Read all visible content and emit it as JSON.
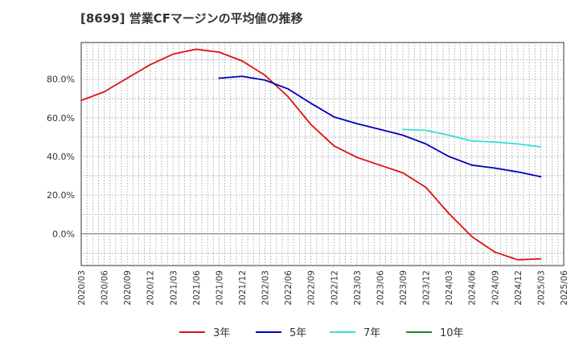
{
  "chart_data": {
    "type": "line",
    "title": "[8699]  営業CFマージンの平均値の推移",
    "xlabel": "",
    "ylabel": "",
    "x_ticks": [
      "2020/03",
      "2020/06",
      "2020/09",
      "2020/12",
      "2021/03",
      "2021/06",
      "2021/09",
      "2021/12",
      "2022/03",
      "2022/06",
      "2022/09",
      "2022/12",
      "2023/03",
      "2023/06",
      "2023/09",
      "2023/12",
      "2024/03",
      "2024/06",
      "2024/09",
      "2024/12",
      "2025/03",
      "2025/06"
    ],
    "y_ticks": [
      "0.0%",
      "20.0%",
      "40.0%",
      "60.0%",
      "80.0%"
    ],
    "y_tick_values": [
      0,
      20,
      40,
      60,
      80
    ],
    "ylim": [
      -16.5,
      99
    ],
    "grid": true,
    "legend_position": "bottom",
    "series": [
      {
        "name": "3年",
        "color": "#dd1111",
        "x": [
          "2020/03",
          "2020/06",
          "2020/09",
          "2020/12",
          "2021/03",
          "2021/06",
          "2021/09",
          "2021/12",
          "2022/03",
          "2022/06",
          "2022/09",
          "2022/12",
          "2023/03",
          "2023/06",
          "2023/09",
          "2023/12",
          "2024/03",
          "2024/06",
          "2024/09",
          "2024/12",
          "2025/03"
        ],
        "values": [
          69,
          73.5,
          80.5,
          87.5,
          93,
          95.5,
          94,
          89.5,
          82,
          71,
          56.5,
          45.5,
          39.5,
          35.5,
          31.5,
          24,
          10.5,
          -1.5,
          -9.5,
          -13.5,
          -13
        ]
      },
      {
        "name": "5年",
        "color": "#0000bb",
        "x": [
          "2021/09",
          "2021/12",
          "2022/03",
          "2022/06",
          "2022/09",
          "2022/12",
          "2023/03",
          "2023/06",
          "2023/09",
          "2023/12",
          "2024/03",
          "2024/06",
          "2024/09",
          "2024/12",
          "2025/03"
        ],
        "values": [
          80.5,
          81.5,
          79.5,
          75,
          67.5,
          60.5,
          57,
          54,
          51,
          46.5,
          40,
          35.5,
          34,
          32,
          29.5
        ]
      },
      {
        "name": "7年",
        "color": "#33dddd",
        "x": [
          "2023/09",
          "2023/12",
          "2024/03",
          "2024/06",
          "2024/09",
          "2024/12",
          "2025/03"
        ],
        "values": [
          54,
          53.5,
          51,
          48,
          47.5,
          46.5,
          45
        ]
      },
      {
        "name": "10年",
        "color": "#228822",
        "x": [],
        "values": []
      }
    ]
  }
}
